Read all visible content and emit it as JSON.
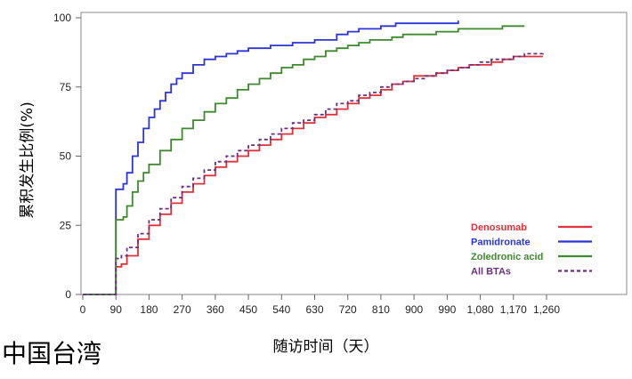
{
  "region_label": "中国台湾",
  "chart_data": {
    "type": "line",
    "step": true,
    "xlabel": "随访时间（天）",
    "ylabel": "累积发生比例(%)",
    "xlim": [
      0,
      1350
    ],
    "ylim": [
      0,
      100
    ],
    "xticks": [
      0,
      90,
      180,
      270,
      360,
      450,
      540,
      630,
      720,
      810,
      900,
      990,
      1080,
      1170,
      1260
    ],
    "xtick_labels": [
      "0",
      "90",
      "180",
      "270",
      "360",
      "450",
      "540",
      "630",
      "720",
      "810",
      "900",
      "990",
      "1,080",
      "1,170",
      "1,260"
    ],
    "yticks": [
      0,
      25,
      50,
      75,
      100
    ],
    "ytick_labels": [
      "0",
      "25",
      "50",
      "75",
      "100"
    ],
    "legend_position": "bottom-right",
    "series": [
      {
        "name": "Denosumab",
        "color": "#e0303a",
        "dash": false,
        "points": [
          [
            0,
            0
          ],
          [
            90,
            0
          ],
          [
            90,
            10
          ],
          [
            105,
            11
          ],
          [
            120,
            14
          ],
          [
            150,
            20
          ],
          [
            180,
            25
          ],
          [
            210,
            29
          ],
          [
            240,
            33
          ],
          [
            270,
            37
          ],
          [
            300,
            40
          ],
          [
            330,
            43
          ],
          [
            360,
            46
          ],
          [
            390,
            48
          ],
          [
            420,
            50
          ],
          [
            450,
            52
          ],
          [
            480,
            54
          ],
          [
            510,
            56
          ],
          [
            540,
            58
          ],
          [
            570,
            60
          ],
          [
            600,
            62
          ],
          [
            630,
            64
          ],
          [
            660,
            65
          ],
          [
            690,
            67
          ],
          [
            720,
            69
          ],
          [
            750,
            71
          ],
          [
            780,
            72
          ],
          [
            810,
            74
          ],
          [
            840,
            76
          ],
          [
            870,
            77
          ],
          [
            900,
            79
          ],
          [
            930,
            79
          ],
          [
            960,
            80
          ],
          [
            990,
            81
          ],
          [
            1020,
            82
          ],
          [
            1050,
            83
          ],
          [
            1080,
            83
          ],
          [
            1110,
            84
          ],
          [
            1140,
            85
          ],
          [
            1170,
            86
          ],
          [
            1200,
            86
          ],
          [
            1250,
            86
          ]
        ]
      },
      {
        "name": "Pamidronate",
        "color": "#2b35d6",
        "dash": false,
        "points": [
          [
            0,
            0
          ],
          [
            90,
            0
          ],
          [
            90,
            38
          ],
          [
            100,
            38
          ],
          [
            110,
            40
          ],
          [
            120,
            44
          ],
          [
            135,
            50
          ],
          [
            150,
            55
          ],
          [
            165,
            60
          ],
          [
            180,
            64
          ],
          [
            195,
            67
          ],
          [
            210,
            70
          ],
          [
            225,
            73
          ],
          [
            240,
            76
          ],
          [
            255,
            78
          ],
          [
            270,
            80
          ],
          [
            300,
            83
          ],
          [
            330,
            85
          ],
          [
            360,
            86
          ],
          [
            390,
            87
          ],
          [
            420,
            88
          ],
          [
            450,
            89
          ],
          [
            510,
            90
          ],
          [
            570,
            91
          ],
          [
            630,
            92
          ],
          [
            690,
            94
          ],
          [
            720,
            95
          ],
          [
            750,
            96
          ],
          [
            780,
            96
          ],
          [
            810,
            97
          ],
          [
            850,
            98
          ],
          [
            900,
            98
          ],
          [
            950,
            98
          ],
          [
            1000,
            98
          ],
          [
            1020,
            98
          ],
          [
            1020,
            99
          ]
        ]
      },
      {
        "name": "Zoledronic acid",
        "color": "#3d8a2e",
        "dash": false,
        "points": [
          [
            0,
            0
          ],
          [
            90,
            0
          ],
          [
            90,
            27
          ],
          [
            110,
            28
          ],
          [
            120,
            32
          ],
          [
            135,
            37
          ],
          [
            150,
            41
          ],
          [
            165,
            44
          ],
          [
            180,
            47
          ],
          [
            210,
            52
          ],
          [
            240,
            56
          ],
          [
            270,
            60
          ],
          [
            300,
            63
          ],
          [
            330,
            66
          ],
          [
            360,
            69
          ],
          [
            390,
            71
          ],
          [
            420,
            74
          ],
          [
            450,
            76
          ],
          [
            480,
            78
          ],
          [
            510,
            80
          ],
          [
            540,
            82
          ],
          [
            570,
            83
          ],
          [
            600,
            85
          ],
          [
            630,
            86
          ],
          [
            660,
            88
          ],
          [
            690,
            89
          ],
          [
            720,
            90
          ],
          [
            750,
            91
          ],
          [
            780,
            92
          ],
          [
            810,
            92
          ],
          [
            840,
            93
          ],
          [
            870,
            94
          ],
          [
            900,
            94
          ],
          [
            960,
            95
          ],
          [
            1020,
            96
          ],
          [
            1080,
            96
          ],
          [
            1140,
            97
          ],
          [
            1200,
            97
          ]
        ]
      },
      {
        "name": "All BTAs",
        "color": "#6b2f7e",
        "dash": true,
        "points": [
          [
            0,
            0
          ],
          [
            90,
            0
          ],
          [
            90,
            13
          ],
          [
            105,
            14
          ],
          [
            120,
            17
          ],
          [
            150,
            22
          ],
          [
            180,
            27
          ],
          [
            210,
            31
          ],
          [
            240,
            35
          ],
          [
            270,
            39
          ],
          [
            300,
            42
          ],
          [
            330,
            45
          ],
          [
            360,
            48
          ],
          [
            390,
            50
          ],
          [
            420,
            52
          ],
          [
            450,
            54
          ],
          [
            480,
            56
          ],
          [
            510,
            58
          ],
          [
            540,
            60
          ],
          [
            570,
            62
          ],
          [
            600,
            63
          ],
          [
            630,
            65
          ],
          [
            660,
            67
          ],
          [
            690,
            69
          ],
          [
            720,
            70
          ],
          [
            750,
            72
          ],
          [
            780,
            73
          ],
          [
            810,
            75
          ],
          [
            840,
            76
          ],
          [
            870,
            77
          ],
          [
            900,
            78
          ],
          [
            930,
            79
          ],
          [
            960,
            80
          ],
          [
            990,
            81
          ],
          [
            1020,
            82
          ],
          [
            1050,
            83
          ],
          [
            1080,
            84
          ],
          [
            1110,
            85
          ],
          [
            1140,
            85
          ],
          [
            1170,
            86
          ],
          [
            1200,
            87
          ],
          [
            1250,
            88
          ]
        ]
      }
    ]
  }
}
